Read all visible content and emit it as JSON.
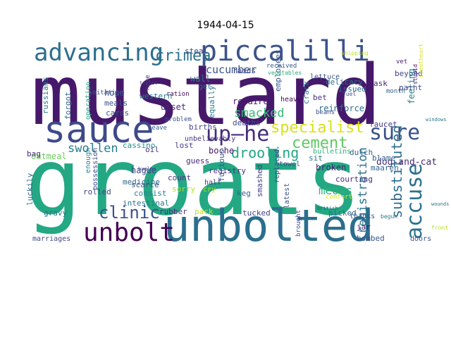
{
  "title": "1944-04-15",
  "words": [
    {
      "text": "mustard",
      "color": "#46186b"
    },
    {
      "text": "groats",
      "color": "#23a883"
    },
    {
      "text": "sauce",
      "color": "#3e4a89"
    },
    {
      "text": "unbolted",
      "color": "#2a6f8e"
    },
    {
      "text": "piccalilli",
      "color": "#3b538a"
    },
    {
      "text": "advancing",
      "color": "#2d6f8e"
    },
    {
      "text": "up—he",
      "color": "#462b7a"
    },
    {
      "text": "accuse",
      "color": "#2c718e"
    },
    {
      "text": "sure",
      "color": "#3a528b"
    },
    {
      "text": "unbolt",
      "color": "#440154"
    },
    {
      "text": "crimea",
      "color": "#2c728e"
    },
    {
      "text": "cucumber",
      "color": "#3b538a"
    },
    {
      "text": "specialist",
      "color": "#d7e219"
    },
    {
      "text": "cement",
      "color": "#5ec962"
    },
    {
      "text": "smacked",
      "color": "#3aba76"
    },
    {
      "text": "drooling",
      "color": "#22a785"
    },
    {
      "text": "substituted",
      "color": "#2e6e8e"
    },
    {
      "text": "clinic",
      "color": "#3b518b"
    },
    {
      "text": "swollen",
      "color": "#287d8e"
    },
    {
      "text": "registration",
      "color": "#2c728e"
    },
    {
      "text": "meows",
      "color": "#30b07a"
    },
    {
      "text": "dog-and-cat",
      "color": "#472d7b"
    },
    {
      "text": "oatmeal",
      "color": "#6ccd5a"
    },
    {
      "text": "raids",
      "color": "#414487"
    },
    {
      "text": "hope",
      "color": "#3a548c"
    },
    {
      "text": "meals",
      "color": "#3a538b"
    },
    {
      "text": "cards",
      "color": "#3b528b"
    },
    {
      "text": "operation",
      "color": "#22a785"
    },
    {
      "text": "russians",
      "color": "#2a788e"
    },
    {
      "text": "forgot",
      "color": "#2f6c8e"
    },
    {
      "text": "western",
      "color": "#297b8e"
    },
    {
      "text": "upset",
      "color": "#482576"
    },
    {
      "text": "lost",
      "color": "#443a83"
    },
    {
      "text": "births",
      "color": "#414487"
    },
    {
      "text": "deaths",
      "color": "#3e4989"
    },
    {
      "text": "repaired",
      "color": "#48186a"
    },
    {
      "text": "equally",
      "color": "#2a788e"
    },
    {
      "text": "crack",
      "color": "#2d708e"
    },
    {
      "text": "employees",
      "color": "#3b528b"
    },
    {
      "text": "delicacy",
      "color": "#2e6f8e"
    },
    {
      "text": "issued",
      "color": "#2f6c8e"
    },
    {
      "text": "reinforce",
      "color": "#2f6b8e"
    },
    {
      "text": "ask",
      "color": "#482878"
    },
    {
      "text": "bet",
      "color": "#46337f"
    },
    {
      "text": "lettuce",
      "color": "#38588c"
    },
    {
      "text": "beyond",
      "color": "#414487"
    },
    {
      "text": "feeling",
      "color": "#26818e"
    },
    {
      "text": "paint",
      "color": "#3e4989"
    },
    {
      "text": "faucet",
      "color": "#443983"
    },
    {
      "text": "blame",
      "color": "#355f8d"
    },
    {
      "text": "bulletins",
      "color": "#2fb47c"
    },
    {
      "text": "dutch",
      "color": "#33638d"
    },
    {
      "text": "sit",
      "color": "#2a768e"
    },
    {
      "text": "guess",
      "color": "#482677"
    },
    {
      "text": "boche",
      "color": "#481467"
    },
    {
      "text": "unbelievably",
      "color": "#45337f"
    },
    {
      "text": "cassino",
      "color": "#21918c"
    },
    {
      "text": "oil",
      "color": "#443983"
    },
    {
      "text": "bag",
      "color": "#482878"
    },
    {
      "text": "hague",
      "color": "#3e4989"
    },
    {
      "text": "medicine",
      "color": "#31688e"
    },
    {
      "text": "scarce",
      "color": "#3b528b"
    },
    {
      "text": "count",
      "color": "#453781"
    },
    {
      "text": "registry",
      "color": "#46307e"
    },
    {
      "text": "towel",
      "color": "#3a538b"
    },
    {
      "text": "broken",
      "color": "#482071"
    },
    {
      "text": "maaren",
      "color": "#31688e"
    },
    {
      "text": "courting",
      "color": "#472c7a"
    },
    {
      "text": "sorry",
      "color": "#b5de2b"
    },
    {
      "text": "keg",
      "color": "#33638d"
    },
    {
      "text": "furious",
      "color": "#39568c"
    },
    {
      "text": "smashed",
      "color": "#424086"
    },
    {
      "text": "replaced",
      "color": "#3d4e8a"
    },
    {
      "text": "latest",
      "color": "#3b518b"
    },
    {
      "text": "intestinal",
      "color": "#2a778e"
    },
    {
      "text": "consist",
      "color": "#26828e"
    },
    {
      "text": "rolled",
      "color": "#3f4788"
    },
    {
      "text": "luckily",
      "color": "#2e6f8e"
    },
    {
      "text": "enough",
      "color": "#27808e"
    },
    {
      "text": "possession",
      "color": "#3e4989"
    },
    {
      "text": "rubber",
      "color": "#472f7d"
    },
    {
      "text": "pack",
      "color": "#c8e020"
    },
    {
      "text": "tucked",
      "color": "#414487"
    },
    {
      "text": "picked",
      "color": "#32658e"
    },
    {
      "text": "thanks",
      "color": "#38598c"
    },
    {
      "text": "jar",
      "color": "#481769"
    },
    {
      "text": "bombed",
      "color": "#39568c"
    },
    {
      "text": "gravy",
      "color": "#2a768e"
    },
    {
      "text": "marriages",
      "color": "#3f4889"
    },
    {
      "text": "half",
      "color": "#453882"
    },
    {
      "text": "doors",
      "color": "#3b528b"
    },
    {
      "text": "brought",
      "color": "#3e4a89"
    },
    {
      "text": "leave",
      "color": "#365d8d"
    },
    {
      "text": "imitation",
      "color": "#3b528b"
    },
    {
      "text": "steal",
      "color": "#3f4788"
    },
    {
      "text": "vet",
      "color": "#482475"
    },
    {
      "text": "nose",
      "color": "#453781"
    },
    {
      "text": "ration",
      "color": "#440154"
    },
    {
      "text": "heavy",
      "color": "#46085c"
    },
    {
      "text": "month",
      "color": "#355f8d"
    },
    {
      "text": "beans",
      "color": "#3d4e8a"
    },
    {
      "text": "comfort",
      "color": "#e5e419"
    },
    {
      "text": "wall",
      "color": "#2c718e"
    },
    {
      "text": "get",
      "color": "#31688e"
    },
    {
      "text": "problem",
      "color": "#3b528b"
    },
    {
      "text": "received",
      "color": "#38598c"
    },
    {
      "text": "vegetables",
      "color": "#29af7f"
    },
    {
      "text": "cry",
      "color": "#b8de29"
    },
    {
      "text": "sweetheart",
      "color": "#dde318"
    },
    {
      "text": "stupid",
      "color": "#481b6d"
    },
    {
      "text": "fuel",
      "color": "#3b528b"
    },
    {
      "text": "windows",
      "color": "#2a778e"
    },
    {
      "text": "bugler",
      "color": "#3f4788"
    },
    {
      "text": "british",
      "color": "#3e4a89"
    },
    {
      "text": "wounds",
      "color": "#2d708e"
    },
    {
      "text": "front",
      "color": "#b2dd2d"
    },
    {
      "text": "begun",
      "color": "#2a788e"
    },
    {
      "text": "shipping",
      "color": "#c2df23"
    },
    {
      "text": "toilet",
      "color": "#433e85"
    }
  ]
}
